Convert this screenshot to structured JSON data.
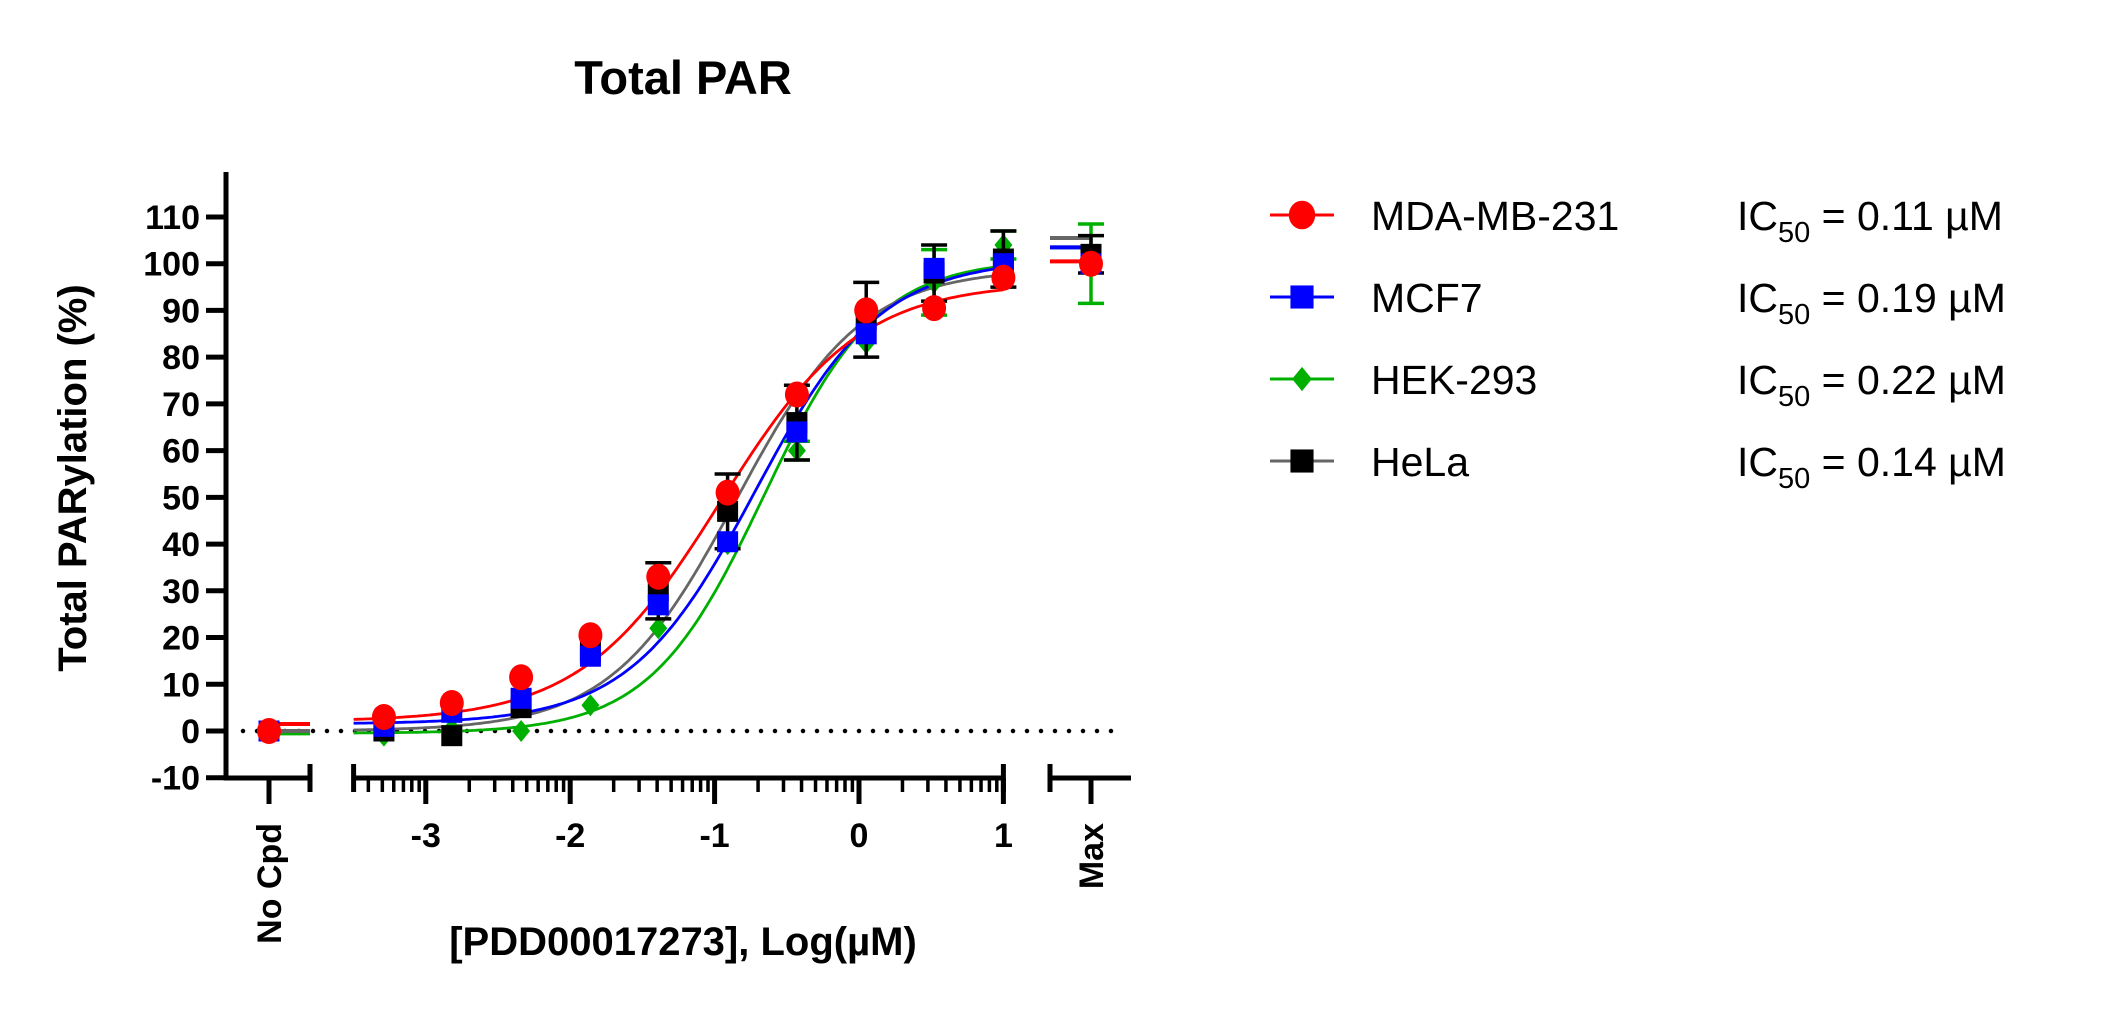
{
  "chart_data": {
    "type": "scatter",
    "title": "Total PAR",
    "xlabel": "[PDD00017273], Log(µM)",
    "ylabel": "Total PARylation (%)",
    "xlim": [
      -3.5,
      1
    ],
    "ylim": [
      -10,
      115
    ],
    "xticks": [
      -3,
      -2,
      -1,
      0,
      1
    ],
    "yticks": [
      -10,
      0,
      10,
      20,
      30,
      40,
      50,
      60,
      70,
      80,
      90,
      100,
      110
    ],
    "x_scale": "log10 (axis printed as log µM, minor log ticks)",
    "extra_categories": {
      "left": "No Cpd",
      "right": "Max"
    },
    "reference_line": {
      "y": 0,
      "style": "dotted"
    },
    "grid": false,
    "legend_position": "right",
    "x": [
      -3.29,
      -2.82,
      -2.34,
      -1.86,
      -1.39,
      -0.91,
      -0.43,
      0.05,
      0.52,
      1.0
    ],
    "series": [
      {
        "name": "MDA-MB-231",
        "ic50_label": "0.11 µM",
        "color": "#ff0000",
        "marker": "circle",
        "values": [
          3,
          6,
          11.5,
          20.5,
          33,
          51,
          72,
          90,
          90.5,
          97
        ],
        "no_cpd": 0,
        "max": 100,
        "fit": {
          "bottom": 2,
          "top": 96,
          "log_ic50": -0.96,
          "hill": 0.9
        }
      },
      {
        "name": "MCF7",
        "ic50_label": "0.19 µM",
        "color": "#0000ff",
        "marker": "square",
        "values": [
          1,
          4,
          7,
          16,
          27,
          40.5,
          64,
          85,
          99,
          100
        ],
        "no_cpd": 0,
        "max": 100,
        "fit": {
          "bottom": 1.5,
          "top": 101,
          "log_ic50": -0.72,
          "hill": 1.0
        }
      },
      {
        "name": "HEK-293",
        "ic50_label": "0.22 µM",
        "color": "#00b000",
        "marker": "diamond",
        "values": [
          -1,
          0.5,
          0,
          5.5,
          22,
          40,
          60,
          83,
          96,
          104
        ],
        "no_cpd": -0.5,
        "max": 100,
        "err": [
          null,
          null,
          null,
          null,
          null,
          null,
          2,
          null,
          7,
          3
        ],
        "max_err": 8.5,
        "fit": {
          "bottom": -0.5,
          "top": 101,
          "log_ic50": -0.66,
          "hill": 1.1
        }
      },
      {
        "name": "HeLa",
        "ic50_label": "0.14 µM",
        "color": "#000000",
        "line_color": "#666666",
        "marker": "square",
        "values": [
          0,
          -1,
          5,
          17,
          30,
          47,
          66,
          88,
          98,
          101
        ],
        "no_cpd": 0,
        "max": 102,
        "err": [
          null,
          null,
          null,
          null,
          6,
          8,
          8,
          8,
          6,
          6
        ],
        "max_err": 4,
        "fit": {
          "bottom": 0,
          "top": 99,
          "log_ic50": -0.85,
          "hill": 1.0
        }
      }
    ],
    "ic50_prefix": "IC",
    "ic50_subscript": "50"
  }
}
